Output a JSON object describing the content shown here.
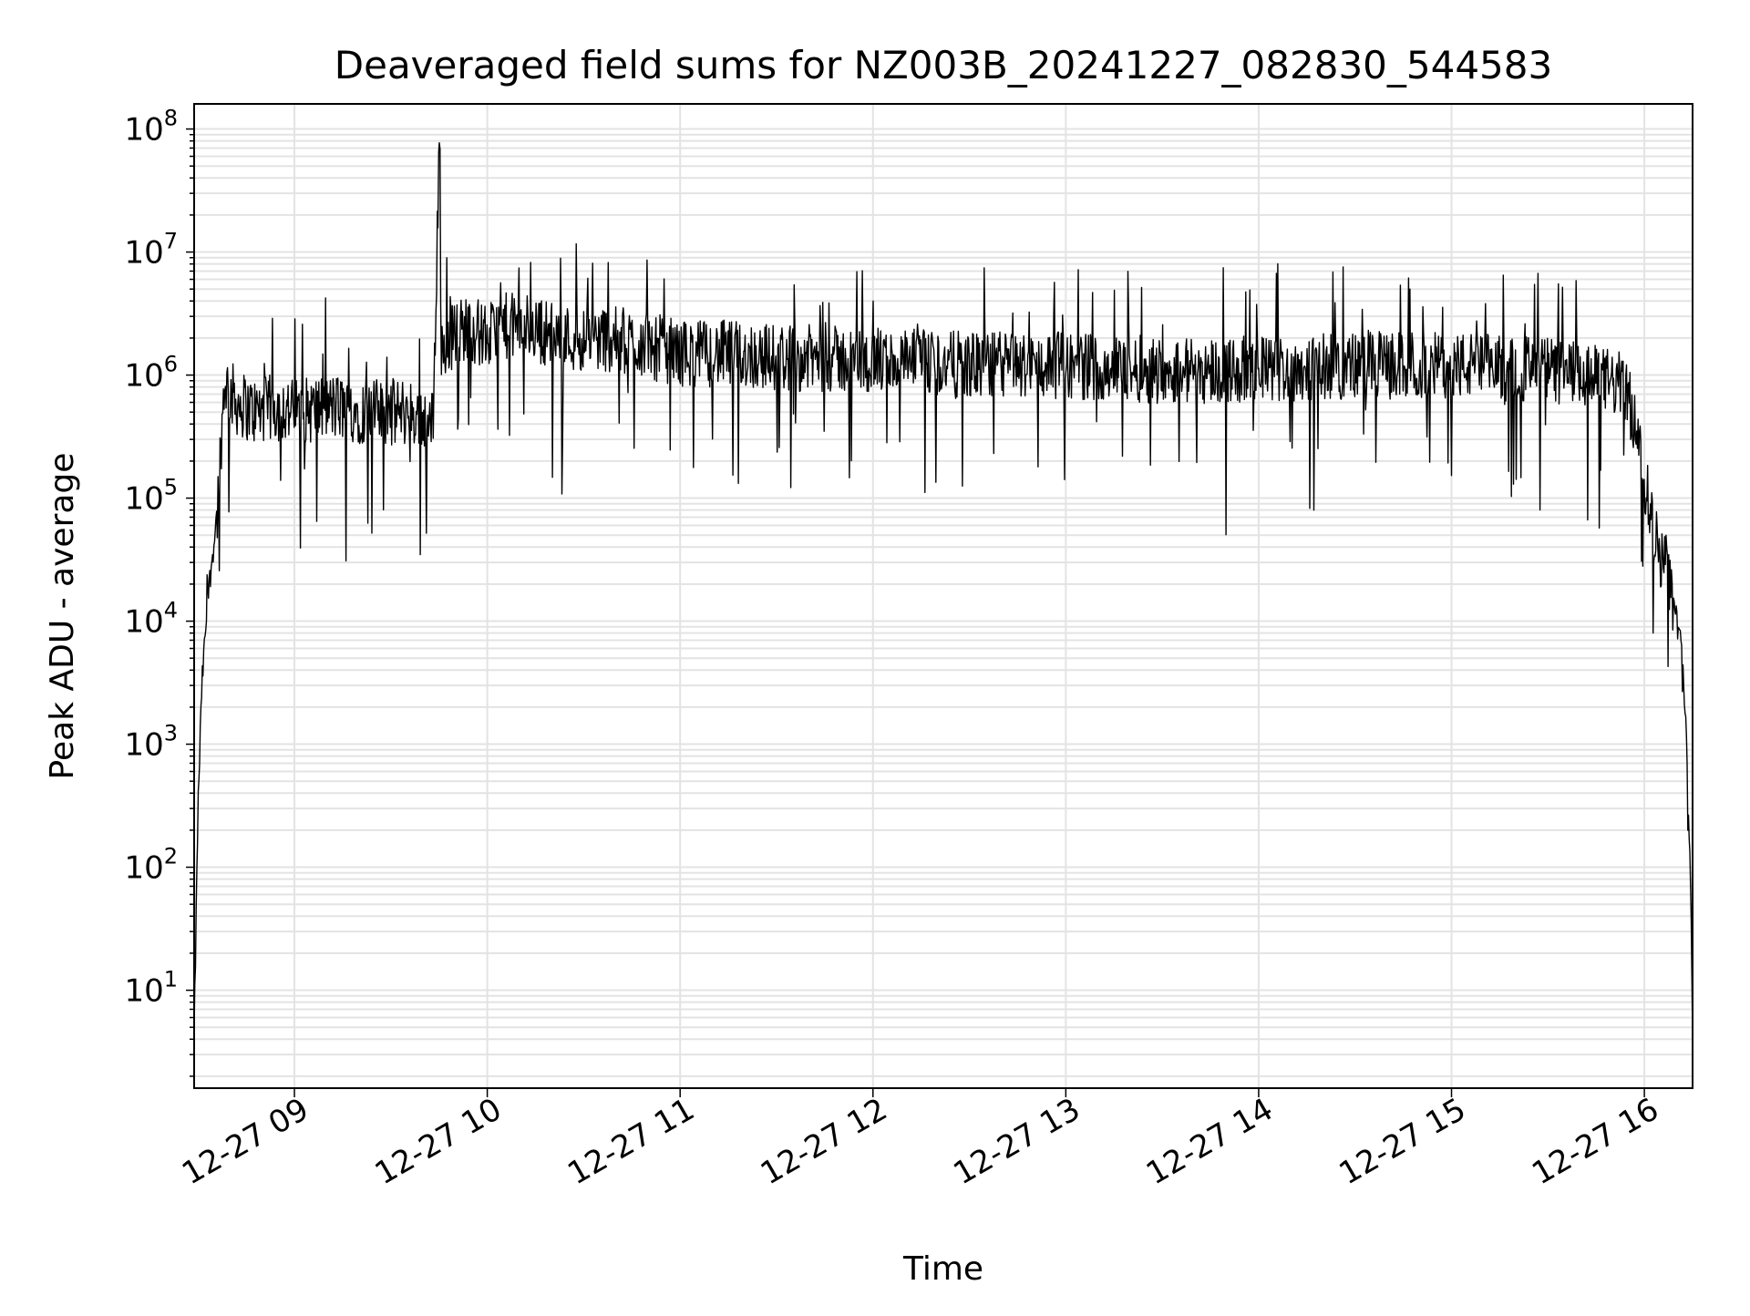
{
  "chart_data": {
    "type": "line",
    "title": "Deaveraged field sums for NZ003B_20241227_082830_544583",
    "xlabel": "Time",
    "ylabel": "Peak ADU - average",
    "x_ticks": [
      "12-27 09",
      "12-27 10",
      "12-27 11",
      "12-27 12",
      "12-27 13",
      "12-27 14",
      "12-27 15",
      "12-27 16"
    ],
    "y_ticks": [
      {
        "base": "10",
        "exp": "1"
      },
      {
        "base": "10",
        "exp": "2"
      },
      {
        "base": "10",
        "exp": "3"
      },
      {
        "base": "10",
        "exp": "4"
      },
      {
        "base": "10",
        "exp": "5"
      },
      {
        "base": "10",
        "exp": "6"
      },
      {
        "base": "10",
        "exp": "7"
      },
      {
        "base": "10",
        "exp": "8"
      }
    ],
    "y_scale": "log",
    "x_unit": "hours since 12-27 00:00",
    "xlim": [
      8.48,
      16.25
    ],
    "ylim": [
      1.6,
      160000000
    ],
    "grid": true,
    "line_color": "#000000",
    "grid_color": "#e3e3e3",
    "series": [
      {
        "values_note": "approximate envelope of the noisy trace",
        "x": [
          8.48,
          8.5,
          8.52,
          8.55,
          8.58,
          8.6,
          8.62,
          8.64,
          8.65,
          8.7,
          8.8,
          8.9,
          9.0,
          9.2,
          9.4,
          9.6,
          9.72,
          9.75,
          9.76,
          9.8,
          9.9,
          10.0,
          10.1,
          10.2,
          10.4,
          10.6,
          10.8,
          11.0,
          11.2,
          11.5,
          12.0,
          12.5,
          13.0,
          13.5,
          14.0,
          14.5,
          15.0,
          15.5,
          15.8,
          15.9,
          15.95,
          16.0,
          16.05,
          16.1,
          16.15,
          16.2,
          16.22,
          16.24,
          16.25
        ],
        "y": [
          4,
          300,
          3000,
          15000,
          40000,
          80000,
          300000,
          1000000,
          800000,
          600000,
          500000,
          550000,
          500000,
          550000,
          500000,
          500000,
          400000,
          70000000,
          1500000,
          2000000,
          2500000,
          2000000,
          2500000,
          2500000,
          2000000,
          2000000,
          1800000,
          1500000,
          1500000,
          1400000,
          1300000,
          1200000,
          1200000,
          1100000,
          1100000,
          1200000,
          1200000,
          1100000,
          900000,
          800000,
          400000,
          150000,
          50000,
          30000,
          15000,
          5000,
          1000,
          80,
          4
        ]
      }
    ]
  }
}
